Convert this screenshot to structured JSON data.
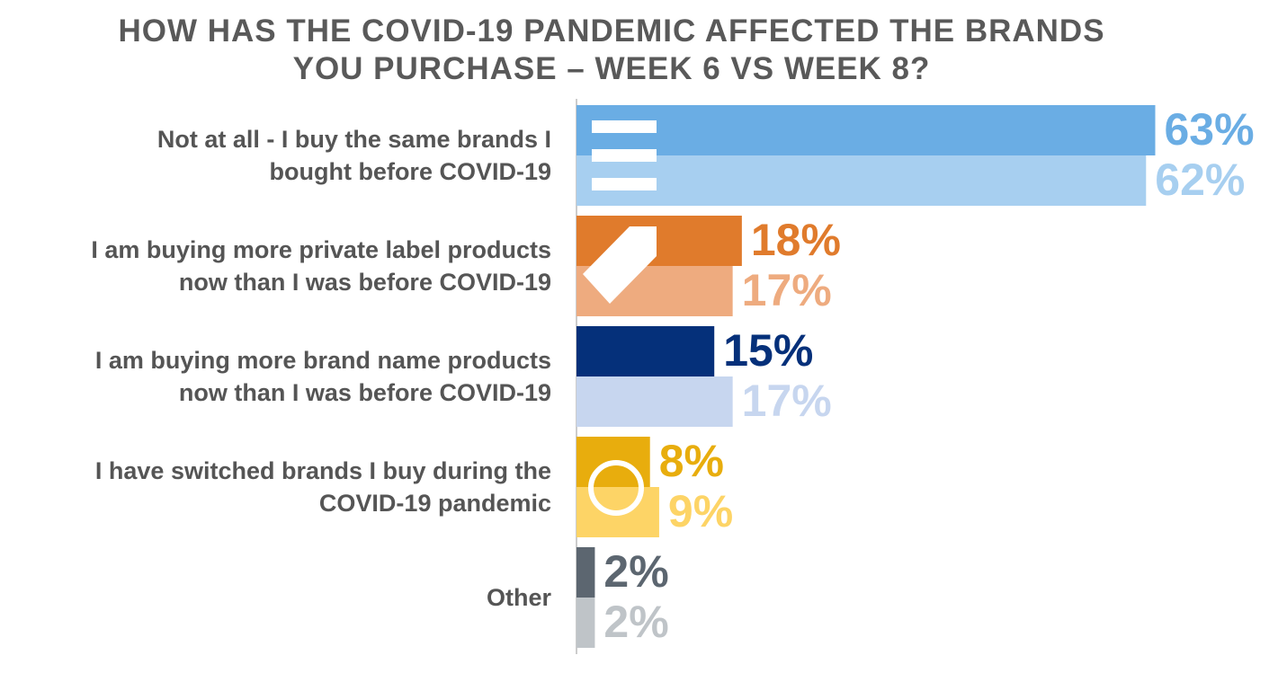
{
  "chart_data": {
    "type": "bar",
    "orientation": "horizontal",
    "title": "HOW HAS THE COVID-19 PANDEMIC AFFECTED THE BRANDS\nYOU PURCHASE – WEEK 6 VS WEEK 8?",
    "categories": [
      "Not at all - I buy the same brands I\nbought before COVID-19",
      "I am buying more private label products\nnow than I was before COVID-19",
      "I am buying more brand name products\nnow than I was before COVID-19",
      "I have switched brands I buy during the\nCOVID-19 pandemic",
      "Other"
    ],
    "series": [
      {
        "values": [
          63,
          18,
          15,
          8,
          2
        ],
        "value_labels": [
          "63%",
          "18%",
          "15%",
          "8%",
          "2%"
        ],
        "colors": [
          "#6aade4",
          "#e07b2c",
          "#05307a",
          "#e8ad0d",
          "#5c6670"
        ]
      },
      {
        "values": [
          62,
          17,
          17,
          9,
          2
        ],
        "value_labels": [
          "62%",
          "17%",
          "17%",
          "9%",
          "2%"
        ],
        "colors": [
          "#a7cff0",
          "#eeab7f",
          "#c7d6ef",
          "#fdd466",
          "#bfc4c8"
        ]
      }
    ],
    "xlim": [
      0,
      70
    ]
  }
}
